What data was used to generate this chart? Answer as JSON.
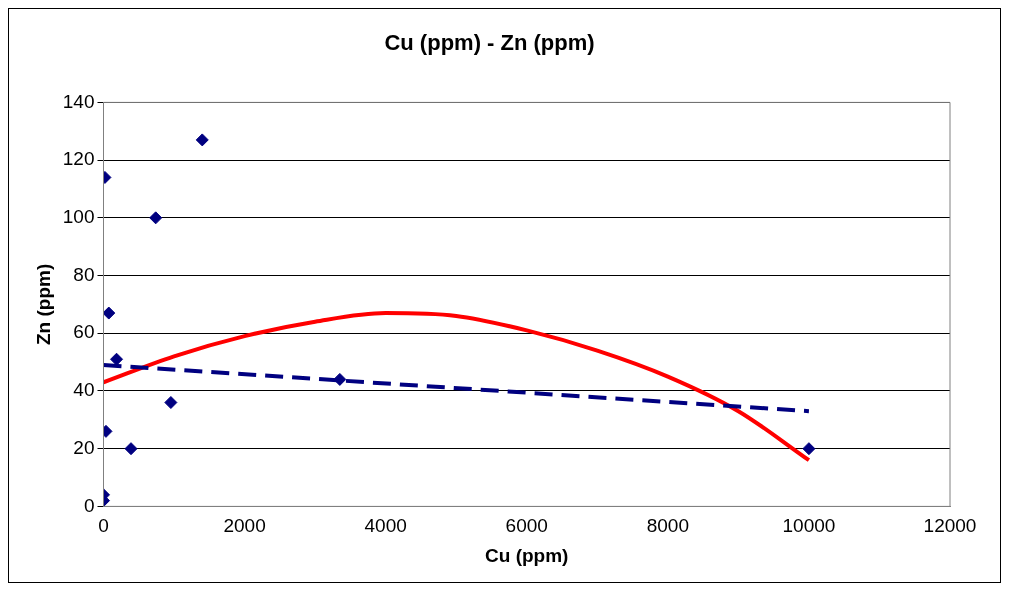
{
  "chart_data": {
    "type": "scatter",
    "title": "Cu (ppm) - Zn (ppm)",
    "xlabel": "Cu (ppm)",
    "ylabel": "Zn (ppm)",
    "xlim": [
      0,
      12000
    ],
    "xticks": [
      0,
      2000,
      4000,
      6000,
      8000,
      10000,
      12000
    ],
    "ylim": [
      0,
      140
    ],
    "yticks": [
      0,
      20,
      40,
      60,
      80,
      100,
      120,
      140
    ],
    "grid": "y",
    "legend": false,
    "series": [
      {
        "color": "#000080",
        "marker": "diamond",
        "x": [
          20,
          1400,
          740,
          75,
          185,
          3350,
          955,
          35,
          390,
          0,
          0,
          10000
        ],
        "values": [
          114,
          127,
          100,
          67,
          51,
          44,
          36,
          26,
          20,
          4,
          2,
          20
        ]
      },
      {
        "type": "line",
        "color": "#000080",
        "marker": "none",
        "line_style": "dashed",
        "x": [
          0,
          10000
        ],
        "values": [
          49,
          33
        ]
      },
      {
        "type": "line",
        "color": "#ff0000",
        "marker": "none",
        "line_style": "solid",
        "x": [
          0,
          1000,
          2000,
          3000,
          4000,
          5000,
          6000,
          7000,
          8000,
          9000,
          10000
        ],
        "values": [
          43,
          52,
          59,
          64,
          67,
          66,
          61,
          54,
          45,
          33,
          16
        ]
      }
    ]
  }
}
